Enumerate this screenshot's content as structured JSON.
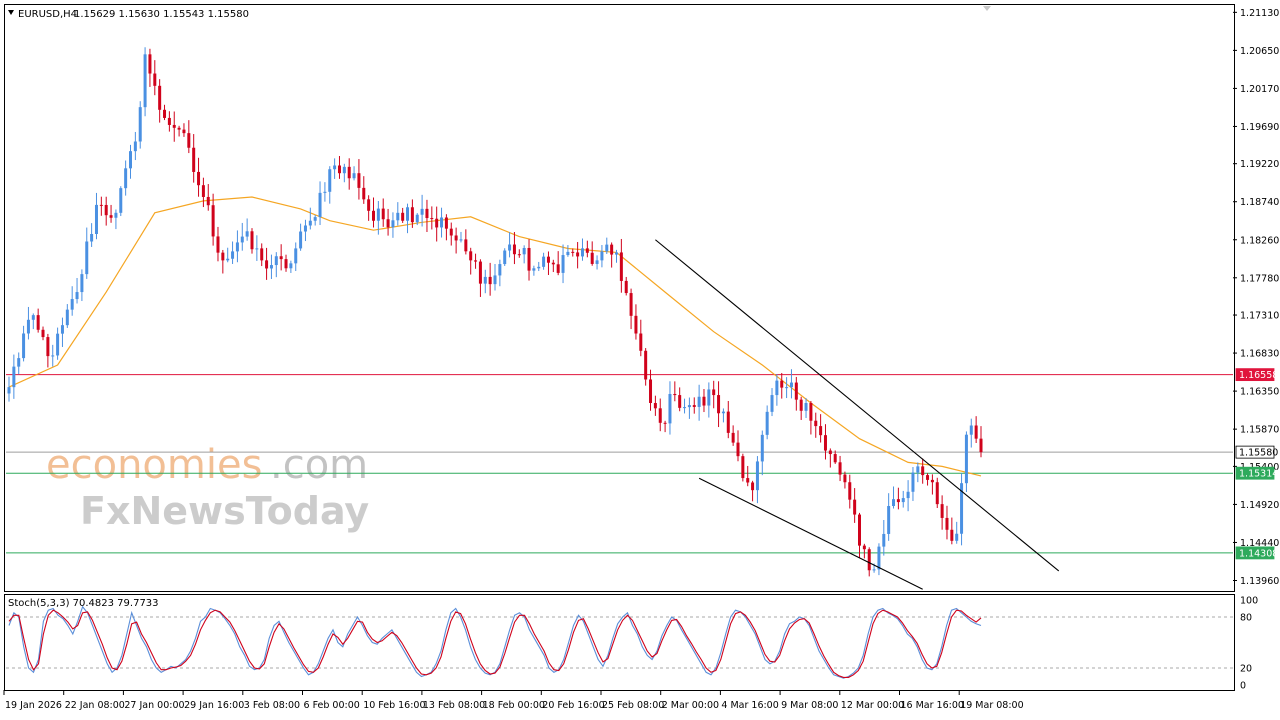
{
  "header": {
    "symbol": "EURUSD,H4",
    "ohlc": "1.15629 1.15630 1.15543 1.15580"
  },
  "watermark": {
    "line1_a": "economies",
    "line1_b": ".com",
    "line2": "FxNewsToday"
  },
  "colors": {
    "bull": "#4a90e2",
    "bear": "#d0021b",
    "ma": "#f5a623",
    "resistance": "#e0143c",
    "support": "#2eaa5c",
    "current": "#9e9e9e",
    "stoch_main": "#5b8fd9",
    "stoch_signal": "#d0021b"
  },
  "chart_data": [
    {
      "type": "candlestick",
      "title": "EURUSD,H4",
      "ylim": [
        1.1384,
        1.2121
      ],
      "y_ticks": [
        "1.21130",
        "1.20650",
        "1.20170",
        "1.19690",
        "1.19220",
        "1.18740",
        "1.18260",
        "1.17780",
        "1.17310",
        "1.16830",
        "1.16350",
        "1.15870",
        "1.15400",
        "1.14920",
        "1.14440",
        "1.13960"
      ],
      "x_ticks": [
        "19 Jan 2026",
        "22 Jan 08:00",
        "27 Jan 00:00",
        "29 Jan 16:00",
        "3 Feb 08:00",
        "6 Feb 00:00",
        "10 Feb 16:00",
        "13 Feb 08:00",
        "18 Feb 00:00",
        "20 Feb 16:00",
        "25 Feb 08:00",
        "2 Mar 00:00",
        "4 Mar 16:00",
        "9 Mar 08:00",
        "12 Mar 00:00",
        "16 Mar 16:00",
        "19 Mar 08:00"
      ],
      "anchor_closes": [
        [
          0,
          1.164
        ],
        [
          4,
          1.1725
        ],
        [
          9,
          1.168
        ],
        [
          14,
          1.176
        ],
        [
          18,
          1.187
        ],
        [
          22,
          1.186
        ],
        [
          26,
          1.195
        ],
        [
          28,
          1.206
        ],
        [
          31,
          1.199
        ],
        [
          35,
          1.1965
        ],
        [
          40,
          1.188
        ],
        [
          44,
          1.18
        ],
        [
          48,
          1.183
        ],
        [
          52,
          1.18
        ],
        [
          57,
          1.179
        ],
        [
          62,
          1.185
        ],
        [
          66,
          1.1915
        ],
        [
          71,
          1.191
        ],
        [
          75,
          1.185
        ],
        [
          80,
          1.186
        ],
        [
          85,
          1.1865
        ],
        [
          90,
          1.184
        ],
        [
          95,
          1.18
        ],
        [
          99,
          1.177
        ],
        [
          103,
          1.182
        ],
        [
          108,
          1.179
        ],
        [
          112,
          1.1795
        ],
        [
          116,
          1.181
        ],
        [
          121,
          1.18
        ],
        [
          125,
          1.181
        ],
        [
          128,
          1.173
        ],
        [
          132,
          1.162
        ],
        [
          134,
          1.1595
        ],
        [
          137,
          1.163
        ],
        [
          141,
          1.1615
        ],
        [
          145,
          1.163
        ],
        [
          149,
          1.157
        ],
        [
          153,
          1.151
        ],
        [
          157,
          1.163
        ],
        [
          160,
          1.164
        ],
        [
          164,
          1.162
        ],
        [
          168,
          1.156
        ],
        [
          172,
          1.152
        ],
        [
          175,
          1.144
        ],
        [
          178,
          1.141
        ],
        [
          181,
          1.149
        ],
        [
          184,
          1.15
        ],
        [
          187,
          1.154
        ],
        [
          190,
          1.152
        ],
        [
          193,
          1.146
        ],
        [
          195,
          1.1455
        ],
        [
          197,
          1.158
        ],
        [
          199,
          1.1575
        ],
        [
          200,
          1.1558
        ]
      ],
      "ma_line": [
        [
          0,
          1.164
        ],
        [
          10,
          1.1668
        ],
        [
          20,
          1.176
        ],
        [
          30,
          1.186
        ],
        [
          40,
          1.1875
        ],
        [
          50,
          1.188
        ],
        [
          60,
          1.1865
        ],
        [
          66,
          1.185
        ],
        [
          75,
          1.1838
        ],
        [
          85,
          1.1848
        ],
        [
          95,
          1.1855
        ],
        [
          105,
          1.183
        ],
        [
          115,
          1.1815
        ],
        [
          125,
          1.181
        ],
        [
          135,
          1.176
        ],
        [
          145,
          1.171
        ],
        [
          155,
          1.1668
        ],
        [
          165,
          1.162
        ],
        [
          175,
          1.1575
        ],
        [
          185,
          1.1545
        ],
        [
          192,
          1.154
        ],
        [
          200,
          1.1528
        ]
      ],
      "horizontal_levels": [
        {
          "label": "1.16558",
          "value": 1.16558,
          "kind": "resistance"
        },
        {
          "label": "1.15580",
          "value": 1.1558,
          "kind": "current"
        },
        {
          "label": "1.15314",
          "value": 1.15314,
          "kind": "support"
        },
        {
          "label": "1.14308",
          "value": 1.14308,
          "kind": "support"
        }
      ],
      "trendlines": [
        {
          "from": [
            133,
            1.1826
          ],
          "to": [
            216,
            1.1408
          ]
        },
        {
          "from": [
            142,
            1.1525
          ],
          "to": [
            188,
            1.1385
          ]
        }
      ]
    },
    {
      "type": "line",
      "title": "Stoch(5,3,3) 70.4823 79.7733",
      "ylim": [
        0,
        100
      ],
      "y_ticks": [
        "100",
        "80",
        "20",
        "0"
      ],
      "levels": [
        80,
        20
      ],
      "series": [
        {
          "name": "main",
          "values": [
            70,
            85,
            80,
            45,
            20,
            15,
            30,
            75,
            88,
            90,
            82,
            78,
            70,
            60,
            75,
            92,
            85,
            70,
            55,
            40,
            25,
            15,
            20,
            35,
            60,
            85,
            70,
            55,
            45,
            30,
            20,
            15,
            18,
            22,
            20,
            25,
            30,
            40,
            55,
            75,
            80,
            90,
            88,
            85,
            78,
            70,
            60,
            45,
            35,
            22,
            18,
            20,
            30,
            55,
            70,
            75,
            62,
            50,
            40,
            30,
            20,
            12,
            15,
            25,
            40,
            55,
            65,
            50,
            45,
            60,
            70,
            80,
            70,
            58,
            50,
            48,
            55,
            60,
            65,
            55,
            45,
            35,
            25,
            15,
            10,
            12,
            15,
            25,
            40,
            65,
            85,
            90,
            80,
            65,
            45,
            30,
            20,
            14,
            12,
            15,
            25,
            45,
            65,
            82,
            85,
            80,
            65,
            55,
            45,
            35,
            20,
            15,
            18,
            30,
            50,
            70,
            82,
            75,
            60,
            45,
            30,
            22,
            35,
            55,
            72,
            80,
            85,
            70,
            60,
            45,
            35,
            30,
            40,
            58,
            70,
            80,
            76,
            65,
            55,
            45,
            35,
            25,
            15,
            12,
            20,
            38,
            60,
            80,
            88,
            86,
            80,
            70,
            60,
            45,
            30,
            25,
            28,
            40,
            60,
            72,
            75,
            80,
            78,
            70,
            55,
            40,
            30,
            20,
            12,
            10,
            8,
            10,
            14,
            20,
            35,
            60,
            80,
            88,
            90,
            85,
            82,
            78,
            70,
            60,
            55,
            45,
            30,
            20,
            18,
            25,
            45,
            70,
            88,
            90,
            85,
            80,
            75,
            72,
            70
          ]
        },
        {
          "name": "signal",
          "values": [
            75,
            82,
            82,
            55,
            30,
            18,
            25,
            60,
            82,
            88,
            85,
            80,
            74,
            66,
            70,
            85,
            86,
            76,
            62,
            48,
            32,
            20,
            18,
            28,
            48,
            72,
            74,
            60,
            50,
            38,
            26,
            18,
            18,
            20,
            21,
            23,
            28,
            35,
            48,
            65,
            76,
            85,
            88,
            86,
            80,
            74,
            64,
            52,
            40,
            28,
            20,
            19,
            25,
            45,
            62,
            72,
            66,
            55,
            44,
            34,
            24,
            16,
            15,
            20,
            33,
            48,
            60,
            56,
            48,
            55,
            65,
            75,
            74,
            62,
            54,
            50,
            52,
            57,
            62,
            58,
            50,
            40,
            30,
            20,
            13,
            12,
            14,
            20,
            33,
            55,
            75,
            86,
            84,
            72,
            54,
            38,
            25,
            17,
            13,
            14,
            21,
            37,
            56,
            74,
            82,
            82,
            72,
            60,
            50,
            40,
            26,
            18,
            17,
            25,
            42,
            62,
            76,
            78,
            66,
            52,
            38,
            27,
            31,
            48,
            65,
            76,
            82,
            76,
            64,
            52,
            40,
            33,
            37,
            52,
            65,
            76,
            77,
            69,
            58,
            49,
            39,
            30,
            20,
            15,
            17,
            30,
            51,
            72,
            84,
            86,
            82,
            74,
            64,
            50,
            36,
            28,
            27,
            35,
            52,
            66,
            73,
            77,
            78,
            73,
            60,
            46,
            34,
            24,
            15,
            11,
            9,
            9,
            12,
            17,
            28,
            50,
            72,
            84,
            88,
            86,
            83,
            80,
            73,
            64,
            57,
            49,
            36,
            25,
            20,
            22,
            38,
            60,
            80,
            88,
            87,
            82,
            78,
            74,
            79
          ]
        }
      ]
    }
  ]
}
